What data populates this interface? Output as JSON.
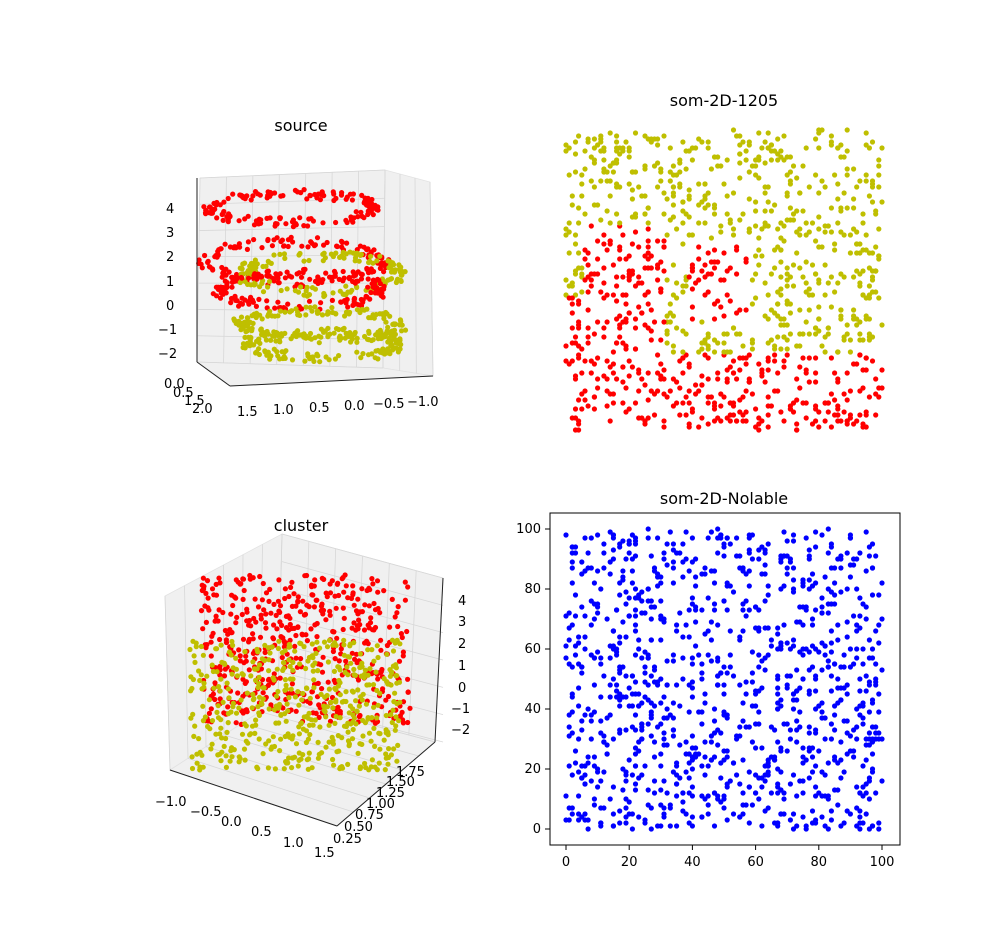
{
  "colors": {
    "red": "#ff0000",
    "yellow": "#bfbf00",
    "blue": "#0000ff",
    "tick": "#000000"
  },
  "chart_data": [
    {
      "id": "source",
      "type": "scatter",
      "projection": "3d",
      "title": "source",
      "description_note": "",
      "series": [
        {
          "color": "red",
          "structure": "upper two spiral turns, z from about 0 to 4.5"
        },
        {
          "color": "yellow",
          "structure": "lower two spiral turns, z from about -2.5 to 1.5"
        }
      ],
      "z_ticks": [
        "4",
        "3",
        "2",
        "1",
        "0",
        "−1",
        "−2"
      ],
      "x_ticks": [
        "1.5",
        "1.0",
        "0.5",
        "0.0",
        "−0.5",
        "−1.0"
      ],
      "y_ticks": [
        "0.0",
        "0.5",
        "1.5",
        "2.0"
      ],
      "y_tick_overlap": "1.0"
    },
    {
      "id": "som-2d-1205",
      "type": "scatter",
      "title": "som-2D-1205",
      "axes_visible": false,
      "xlim": [
        0,
        100
      ],
      "ylim": [
        0,
        100
      ],
      "series": [
        {
          "color": "yellow",
          "region": "top band and right-middle swirl"
        },
        {
          "color": "red",
          "region": "left-middle block, center diamond and bottom band"
        }
      ]
    },
    {
      "id": "cluster",
      "type": "scatter",
      "projection": "3d",
      "title": "cluster",
      "z_ticks": [
        "4",
        "3",
        "2",
        "1",
        "0",
        "−1",
        "−2"
      ],
      "x_ticks": [
        "−1.0",
        "−0.5",
        "0.0",
        "0.5",
        "1.0",
        "1.5"
      ],
      "y_ticks": [
        "1.75",
        "1.50",
        "1.25",
        "1.00",
        "0.75",
        "0.50",
        "0.25"
      ]
    },
    {
      "id": "som-2d-nolable",
      "type": "scatter",
      "title": "som-2D-Nolable",
      "xlim": [
        -5,
        105
      ],
      "ylim": [
        -5,
        105
      ],
      "x_ticks": [
        0,
        20,
        40,
        60,
        80,
        100
      ],
      "y_ticks": [
        0,
        20,
        40,
        60,
        80,
        100
      ],
      "series": [
        {
          "color": "blue",
          "region": "all grid nodes"
        }
      ]
    }
  ]
}
